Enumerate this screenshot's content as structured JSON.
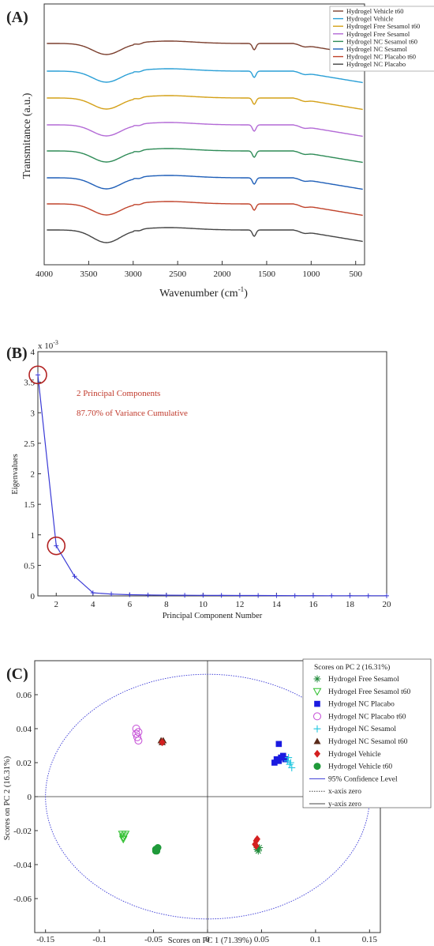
{
  "panel_a": {
    "label": "(A)",
    "xlabel": "Wavenumber (cm",
    "xlabel_sup": "-1",
    "xlabel_end": ")",
    "ylabel": "Transmitance (a.u.)",
    "ticks": [
      "4000",
      "3500",
      "3000",
      "2500",
      "2000",
      "1500",
      "1000",
      "500"
    ]
  },
  "panel_b": {
    "label": "(B)",
    "exponent_prefix": "x 10",
    "exponent_sup": "-3",
    "annot1": "2 Principal Components",
    "annot2": "87.70% of Variance Cumulative",
    "xlabel": "Principal Component Number",
    "ylabel": "Eigenvalues",
    "yticks": [
      "0",
      "0.5",
      "1",
      "1.5",
      "2",
      "2.5",
      "3",
      "3.5",
      "4"
    ],
    "xticks": [
      "2",
      "4",
      "6",
      "8",
      "10",
      "12",
      "14",
      "16",
      "18",
      "20"
    ]
  },
  "panel_c": {
    "label": "(C)",
    "xlabel": "Scores on PC 1 (71.39%)",
    "ylabel": "Scores on PC 2 (16.31%)",
    "legend_title": "Scores on PC 2 (16.31%)",
    "xticks": [
      "-0.15",
      "-0.1",
      "-0.05",
      "0",
      "0.05",
      "0.1",
      "0.15"
    ],
    "yticks": [
      "-0.06",
      "-0.04",
      "-0.02",
      "0",
      "0.02",
      "0.04",
      "0.06"
    ]
  },
  "chart_data": [
    {
      "type": "line",
      "title": "",
      "xlabel": "Wavenumber (cm-1)",
      "ylabel": "Transmitance (a.u.)",
      "xlim": [
        4000,
        400
      ],
      "reversed_x": true,
      "series": [
        {
          "name": "Hydrogel Vehicle t60",
          "color": "#7b3f2e"
        },
        {
          "name": "Hydrogel Vehicle",
          "color": "#2a9fd6"
        },
        {
          "name": "Hydrogel Free Sesamol t60",
          "color": "#d4a017"
        },
        {
          "name": "Hydrogel Free Sesamol",
          "color": "#b36ad6"
        },
        {
          "name": "Hydrogel NC Sesamol t60",
          "color": "#2e8b57"
        },
        {
          "name": "Hydrogel NC Sesamol",
          "color": "#1f5fb8"
        },
        {
          "name": "Hydrogel NC Placabo t60",
          "color": "#c0432b"
        },
        {
          "name": "Hydrogel NC Placabo",
          "color": "#444444"
        }
      ],
      "features_cm1": {
        "broad_OH_min": 3300,
        "amide_dip": 1640,
        "shoulder": 1150
      }
    },
    {
      "type": "line",
      "title": "",
      "xlabel": "Principal Component Number",
      "ylabel": "Eigenvalues",
      "y_multiplier": "x 10^-3",
      "xlim": [
        1,
        20
      ],
      "ylim": [
        0,
        4
      ],
      "x": [
        1,
        2,
        3,
        4,
        5,
        6,
        7,
        8,
        9,
        10,
        11,
        12,
        13,
        14,
        15,
        16,
        17,
        18,
        19,
        20
      ],
      "values": [
        3.62,
        0.82,
        0.32,
        0.05,
        0.03,
        0.02,
        0.015,
        0.012,
        0.01,
        0.009,
        0.008,
        0.007,
        0.006,
        0.005,
        0.004,
        0.004,
        0.003,
        0.003,
        0.002,
        0.002
      ],
      "highlighted_x": [
        1,
        2
      ],
      "color": "#3a3ad6"
    },
    {
      "type": "scatter",
      "title": "",
      "xlabel": "Scores on PC 1 (71.39%)",
      "ylabel": "Scores on PC 2 (16.31%)",
      "xlim": [
        -0.16,
        0.16
      ],
      "ylim": [
        -0.08,
        0.08
      ],
      "confidence_ellipse": {
        "name": "95% Confidence Level",
        "rx": 0.15,
        "ry": 0.072,
        "color": "#3a3ad6"
      },
      "series": [
        {
          "name": "Hydrogel Free Sesamol",
          "marker": "asterisk",
          "color": "#1f8a3a",
          "points": [
            [
              0.046,
              -0.031
            ],
            [
              0.047,
              -0.032
            ],
            [
              0.048,
              -0.03
            ],
            [
              0.046,
              -0.03
            ]
          ]
        },
        {
          "name": "Hydrogel Free Sesamol t60",
          "marker": "triangle-down-open",
          "color": "#2fbf2f",
          "points": [
            [
              -0.079,
              -0.022
            ],
            [
              -0.078,
              -0.024
            ],
            [
              -0.077,
              -0.023
            ],
            [
              -0.078,
              -0.025
            ],
            [
              -0.076,
              -0.022
            ]
          ]
        },
        {
          "name": "Hydrogel NC Placabo",
          "marker": "square",
          "color": "#1a1ae0",
          "points": [
            [
              0.062,
              0.02
            ],
            [
              0.064,
              0.022
            ],
            [
              0.066,
              0.031
            ],
            [
              0.068,
              0.023
            ],
            [
              0.07,
              0.024
            ],
            [
              0.072,
              0.022
            ],
            [
              0.066,
              0.021
            ]
          ]
        },
        {
          "name": "Hydrogel NC Placabo t60",
          "marker": "circle-open",
          "color": "#c44bd6",
          "points": [
            [
              -0.066,
              0.04
            ],
            [
              -0.064,
              0.038
            ],
            [
              -0.065,
              0.035
            ],
            [
              -0.064,
              0.033
            ],
            [
              -0.066,
              0.037
            ]
          ]
        },
        {
          "name": "Hydrogel NC Sesamol",
          "marker": "plus",
          "color": "#22c7e0",
          "points": [
            [
              0.074,
              0.021
            ],
            [
              0.076,
              0.019
            ],
            [
              0.078,
              0.017
            ],
            [
              0.075,
              0.023
            ],
            [
              0.077,
              0.02
            ]
          ]
        },
        {
          "name": "Hydrogel NC Sesamol t60",
          "marker": "triangle-up",
          "color": "#5a2a1a",
          "points": [
            [
              -0.043,
              0.033
            ],
            [
              -0.042,
              0.032
            ],
            [
              -0.041,
              0.033
            ]
          ]
        },
        {
          "name": "Hydrogel Vehicle",
          "marker": "diamond",
          "color": "#d42020",
          "points": [
            [
              -0.042,
              0.032
            ],
            [
              0.045,
              -0.026
            ],
            [
              0.044,
              -0.028
            ],
            [
              0.046,
              -0.025
            ],
            [
              0.045,
              -0.029
            ]
          ]
        },
        {
          "name": "Hydrogel Vehicle t60",
          "marker": "circle",
          "color": "#1f9a3a",
          "points": [
            [
              -0.048,
              -0.031
            ],
            [
              -0.047,
              -0.032
            ],
            [
              -0.046,
              -0.03
            ],
            [
              -0.048,
              -0.032
            ]
          ]
        }
      ],
      "reference_lines": [
        {
          "name": "95% Confidence Level",
          "style": "solid",
          "color": "#3a3ad6"
        },
        {
          "name": "x-axis zero",
          "style": "dotted",
          "color": "#444"
        },
        {
          "name": "y-axis zero",
          "style": "solid",
          "color": "#444"
        }
      ]
    }
  ]
}
